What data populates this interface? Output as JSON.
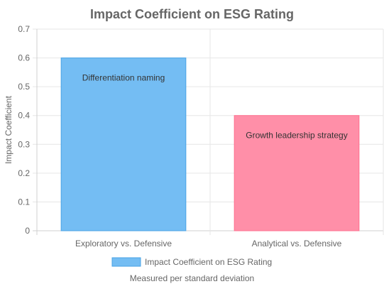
{
  "chart_data": {
    "type": "bar",
    "title": "Impact Coefficient on ESG Rating",
    "xlabel": "",
    "ylabel": "Impact Coefficient",
    "ylim": [
      0,
      0.7
    ],
    "yticks": [
      "0",
      "0.1",
      "0.2",
      "0.3",
      "0.4",
      "0.5",
      "0.6",
      "0.7"
    ],
    "grid": true,
    "categories": [
      "Exploratory vs. Defensive",
      "Analytical vs. Defensive"
    ],
    "series": [
      {
        "name": "Impact Coefficient on ESG Rating",
        "values": [
          0.6,
          0.4
        ],
        "colors": [
          "#74bdf3",
          "#ff8fa8"
        ],
        "border_colors": [
          "#4aa3e6",
          "#ff6f8f"
        ]
      }
    ],
    "bar_labels": [
      "Differentiation naming",
      "Growth leadership strategy"
    ],
    "legend_position": "bottom",
    "footnote": "Measured per standard deviation"
  }
}
